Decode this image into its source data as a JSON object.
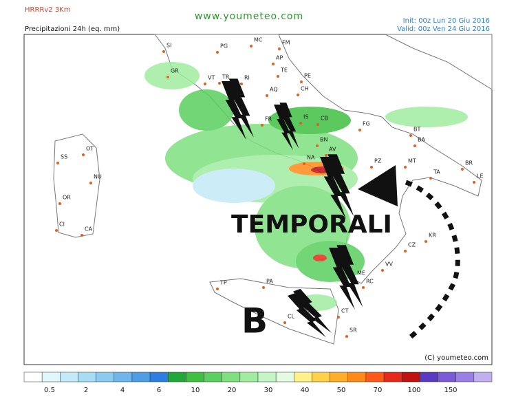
{
  "header": {
    "model": "HRRRv2 3Km",
    "product": "Precipitazioni 24h (eq. mm)",
    "site": "www.youmeteo.com",
    "init": "Init: 00z Lun 20 Giu 2016",
    "valid": "Valid: 00z Ven 24 Giu 2016"
  },
  "map": {
    "places": [
      "SI",
      "PG",
      "MC",
      "FM",
      "AP",
      "TE",
      "GR",
      "VT",
      "TR",
      "RI",
      "PE",
      "AQ",
      "CH",
      "FR",
      "IS",
      "CB",
      "FG",
      "BT",
      "BA",
      "BN",
      "AV",
      "NA",
      "PZ",
      "MT",
      "TA",
      "BR",
      "LE",
      "SS",
      "OT",
      "NU",
      "OR",
      "CI",
      "CA",
      "KR",
      "CZ",
      "VV",
      "ME",
      "RC",
      "TP",
      "PA",
      "CT",
      "CL",
      "SR"
    ],
    "annotations": {
      "storms": "TEMPORALI",
      "low": "B"
    },
    "copyright": "(C) youmeteo.com"
  },
  "legend": {
    "colors": [
      "#ffffff",
      "#e0f6fb",
      "#c4eaf7",
      "#a8dcf4",
      "#8ccaf0",
      "#6fb6ec",
      "#4c9ce6",
      "#2a7fe0",
      "#22a83a",
      "#3fc043",
      "#5ad060",
      "#7ee07e",
      "#a0eca0",
      "#c4f5c4",
      "#e2fbe2",
      "#fff08a",
      "#ffd04a",
      "#ffae2a",
      "#ff8a1a",
      "#ff5a1a",
      "#e8281a",
      "#c01010",
      "#5a3ac0",
      "#7a5ad8",
      "#9a80e6",
      "#c0b0f0"
    ],
    "labels": [
      0.5,
      2,
      4,
      6,
      10,
      20,
      30,
      40,
      50,
      70,
      100,
      150
    ]
  }
}
